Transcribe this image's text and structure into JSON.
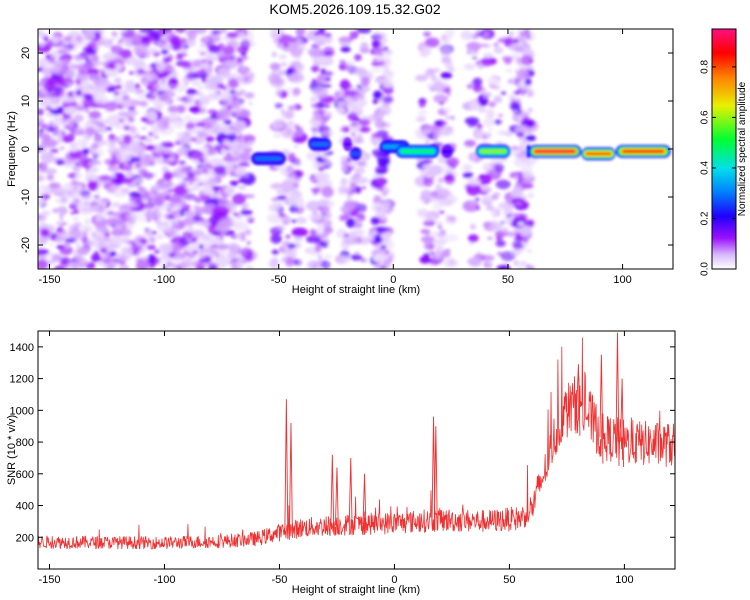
{
  "title": "KOM5.2026.109.15.32.G02",
  "chart_data": [
    {
      "type": "heatmap",
      "xlabel": "Height of straight line (km)",
      "ylabel": "Frequency (Hz)",
      "xlim": [
        -155,
        122
      ],
      "ylim": [
        -25,
        25
      ],
      "xticks": [
        -150,
        -100,
        -50,
        0,
        50,
        100
      ],
      "yticks": [
        -20,
        -10,
        0,
        10,
        20
      ],
      "xtick_labels": [
        "-150",
        "-100",
        "-50",
        "0",
        "50",
        "100"
      ],
      "ytick_labels": [
        "-20",
        "-10",
        "0",
        "10",
        "20"
      ],
      "colorbar": {
        "label": "Normalized spectral amplitude",
        "range": [
          0,
          0.95
        ],
        "ticks": [
          0,
          0.2,
          0.4,
          0.6,
          0.8
        ],
        "tick_labels": [
          "0.0",
          "0.2",
          "0.4",
          "0.6",
          "0.8"
        ],
        "colors": [
          "#ffffff",
          "#9a10ff",
          "#2000ff",
          "#0090ff",
          "#00e8e8",
          "#00ff40",
          "#f0f000",
          "#ff9000",
          "#ff0000",
          "#ff1080"
        ]
      },
      "band_segments": [
        {
          "x_start": -62,
          "x_end": -47,
          "freq": -2,
          "amplitude": 0.3
        },
        {
          "x_start": -37,
          "x_end": -27,
          "freq": 1,
          "amplitude": 0.3
        },
        {
          "x_start": -22,
          "x_end": -18,
          "freq": 1,
          "amplitude": 0.18
        },
        {
          "x_start": -19,
          "x_end": -14,
          "freq": -1,
          "amplitude": 0.28
        },
        {
          "x_start": -6,
          "x_end": -1,
          "freq": 0,
          "amplitude": 0.18
        },
        {
          "x_start": -6,
          "x_end": 7,
          "freq": 0.5,
          "amplitude": 0.35
        },
        {
          "x_start": 1,
          "x_end": 20,
          "freq": -0.5,
          "amplitude": 0.5
        },
        {
          "x_start": 21,
          "x_end": 26,
          "freq": -0.5,
          "amplitude": 0.2
        },
        {
          "x_start": 36,
          "x_end": 51,
          "freq": -0.5,
          "amplitude": 0.6
        },
        {
          "x_start": 58,
          "x_end": 60,
          "freq": -0.5,
          "amplitude": 0.3
        },
        {
          "x_start": 59,
          "x_end": 82,
          "freq": -0.5,
          "amplitude": 0.9
        },
        {
          "x_start": 82,
          "x_end": 97,
          "freq": -1,
          "amplitude": 0.8
        },
        {
          "x_start": 97,
          "x_end": 121,
          "freq": -0.5,
          "amplitude": 0.85
        }
      ],
      "noise": {
        "x_start": -155,
        "x_end": 60,
        "freq_range": [
          -25,
          25
        ],
        "dense_until": -62
      }
    },
    {
      "type": "line",
      "xlabel": "Height of straight line (km)",
      "ylabel": "SNR (10 * v/v)",
      "xlim": [
        -155,
        122
      ],
      "ylim": [
        0,
        1500
      ],
      "xticks": [
        -150,
        -100,
        -50,
        0,
        50,
        100
      ],
      "yticks": [
        200,
        400,
        600,
        800,
        1000,
        1200,
        1400
      ],
      "xtick_labels": [
        "-150",
        "-100",
        "-50",
        "0",
        "50",
        "100"
      ],
      "ytick_labels": [
        "200",
        "400",
        "600",
        "800",
        "1000",
        "1200",
        "1400"
      ],
      "color": "#f03030",
      "baseline_profile": {
        "x": [
          -155,
          -100,
          -75,
          -60,
          -50,
          -40,
          -20,
          0,
          20,
          40,
          55,
          60,
          65,
          70,
          75,
          80,
          85,
          90,
          95,
          100,
          110,
          122
        ],
        "y": [
          170,
          165,
          175,
          190,
          230,
          260,
          280,
          290,
          310,
          300,
          320,
          390,
          600,
          850,
          1000,
          1050,
          960,
          830,
          820,
          800,
          790,
          780
        ]
      },
      "noise_amplitude": [
        40,
        90
      ],
      "spikes": [
        {
          "x": -47,
          "y": 1070
        },
        {
          "x": -45,
          "y": 920
        },
        {
          "x": -27,
          "y": 720
        },
        {
          "x": -25,
          "y": 640
        },
        {
          "x": -19,
          "y": 700
        },
        {
          "x": -13,
          "y": 600
        },
        {
          "x": 17,
          "y": 960
        },
        {
          "x": 18,
          "y": 900
        },
        {
          "x": 80,
          "y": 1290
        },
        {
          "x": 90,
          "y": 1350
        },
        {
          "x": 97,
          "y": 1490
        },
        {
          "x": 99,
          "y": 1200
        }
      ]
    }
  ]
}
